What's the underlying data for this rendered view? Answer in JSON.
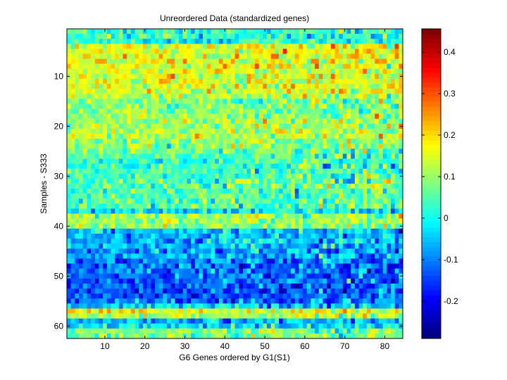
{
  "chart_data": {
    "type": "heatmap",
    "title": "Unreordered Data (standardized genes)",
    "xlabel": "G6 Genes ordered by G1(S1)",
    "ylabel": "Samples - S333",
    "n_cols": 84,
    "n_rows": 62,
    "xlim": [
      0.5,
      84.5
    ],
    "ylim": [
      0.5,
      62.5
    ],
    "xticks": [
      10,
      20,
      30,
      40,
      50,
      60,
      70,
      80
    ],
    "yticks": [
      10,
      20,
      30,
      40,
      50,
      60
    ],
    "colormap": "jet",
    "clim": [
      -0.29,
      0.456
    ],
    "colorbar_ticks": [
      -0.2,
      -0.1,
      0,
      0.1,
      0.2,
      0.3,
      0.4
    ],
    "colorbar_tick_labels": [
      "-0.2",
      "-0.1",
      "0",
      "0.1",
      "0.2",
      "0.3",
      "0.4"
    ],
    "row_means": [
      0.02,
      0.03,
      0.0,
      0.15,
      0.16,
      0.15,
      0.16,
      0.17,
      0.16,
      0.15,
      0.16,
      0.15,
      0.14,
      0.11,
      0.08,
      0.08,
      0.09,
      0.1,
      0.12,
      0.11,
      0.12,
      0.13,
      0.1,
      0.09,
      0.07,
      0.04,
      0.02,
      0.03,
      0.04,
      0.04,
      0.05,
      0.06,
      0.04,
      0.05,
      0.05,
      0.06,
      -0.03,
      0.1,
      0.11,
      0.1,
      -0.05,
      -0.06,
      -0.05,
      -0.06,
      -0.07,
      -0.07,
      -0.1,
      -0.12,
      -0.11,
      -0.12,
      -0.13,
      -0.13,
      -0.14,
      -0.12,
      -0.1,
      -0.04,
      0.15,
      0.12,
      -0.06,
      -0.03,
      0.08,
      0.06
    ],
    "cell_noise_sd": 0.04,
    "noise_seed": 7
  }
}
